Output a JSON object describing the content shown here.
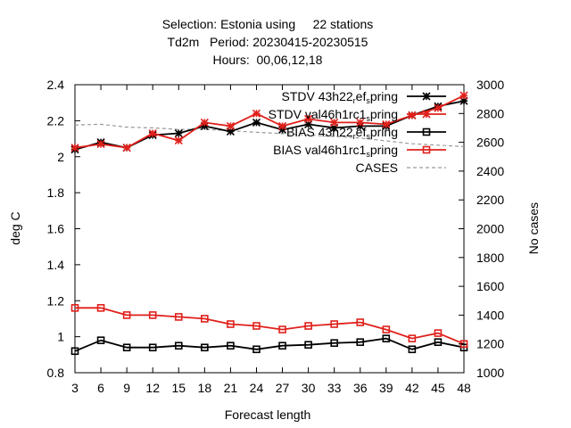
{
  "chart_data": {
    "type": "line",
    "title_lines": [
      "Selection: Estonia using     22 stations",
      "Td2m   Period: 20230415-20230515",
      "Hours:  00,06,12,18"
    ],
    "xlabel": "Forecast length",
    "ylabel": "deg C",
    "y2label": "No cases",
    "x": [
      3,
      6,
      9,
      12,
      15,
      18,
      21,
      24,
      27,
      30,
      33,
      36,
      39,
      42,
      45,
      48
    ],
    "xlim": [
      3,
      48
    ],
    "ylim": [
      0.8,
      2.4
    ],
    "y2lim": [
      1000,
      3000
    ],
    "x_ticks": [
      3,
      6,
      9,
      12,
      15,
      18,
      21,
      24,
      27,
      30,
      33,
      36,
      39,
      42,
      45,
      48
    ],
    "y_ticks": [
      "0.8",
      "1",
      "1.2",
      "1.4",
      "1.6",
      "1.8",
      "2",
      "2.2",
      "2.4"
    ],
    "y2_ticks": [
      "1000",
      "1200",
      "1400",
      "1600",
      "1800",
      "2000",
      "2200",
      "2400",
      "2600",
      "2800",
      "3000"
    ],
    "legend_position": "top-right",
    "grid": false,
    "series": [
      {
        "name": "STDV 43h22_ref_spring",
        "legend_parts": [
          "STDV 43h22",
          "r",
          "ef",
          "s",
          "pring"
        ],
        "axis": "left",
        "color": "#000000",
        "marker": "star",
        "values": [
          2.04,
          2.08,
          2.05,
          2.12,
          2.13,
          2.17,
          2.14,
          2.19,
          2.15,
          2.18,
          2.16,
          2.17,
          2.17,
          2.23,
          2.28,
          2.31
        ]
      },
      {
        "name": "STDV val46h1rc1_spring",
        "legend_parts": [
          "STDV val46h1rc1",
          "s",
          "pring"
        ],
        "axis": "left",
        "color": "#e0201b",
        "marker": "star",
        "values": [
          2.05,
          2.07,
          2.05,
          2.13,
          2.09,
          2.19,
          2.17,
          2.24,
          2.17,
          2.21,
          2.19,
          2.19,
          2.18,
          2.23,
          2.27,
          2.34
        ]
      },
      {
        "name": "BIAS 43h22_ref_spring",
        "legend_parts": [
          "BIAS 43h22",
          "r",
          "ef",
          "s",
          "pring"
        ],
        "axis": "left",
        "color": "#000000",
        "marker": "square",
        "values": [
          0.92,
          0.98,
          0.94,
          0.94,
          0.95,
          0.94,
          0.95,
          0.93,
          0.95,
          0.955,
          0.965,
          0.97,
          0.99,
          0.93,
          0.97,
          0.94
        ]
      },
      {
        "name": "BIAS val46h1rc1_spring",
        "legend_parts": [
          "BIAS val46h1rc1",
          "s",
          "pring"
        ],
        "axis": "left",
        "color": "#e0201b",
        "marker": "square",
        "values": [
          1.16,
          1.16,
          1.12,
          1.12,
          1.11,
          1.1,
          1.07,
          1.06,
          1.04,
          1.06,
          1.07,
          1.08,
          1.04,
          0.99,
          1.02,
          0.96
        ]
      },
      {
        "name": "CASES",
        "legend_parts": [
          "CASES"
        ],
        "axis": "right",
        "color": "#999999",
        "marker": "none",
        "dashed": true,
        "values": [
          2720,
          2725,
          2705,
          2700,
          2690,
          2690,
          2680,
          2670,
          2660,
          2650,
          2640,
          2630,
          2610,
          2590,
          2580,
          2570
        ]
      }
    ]
  }
}
